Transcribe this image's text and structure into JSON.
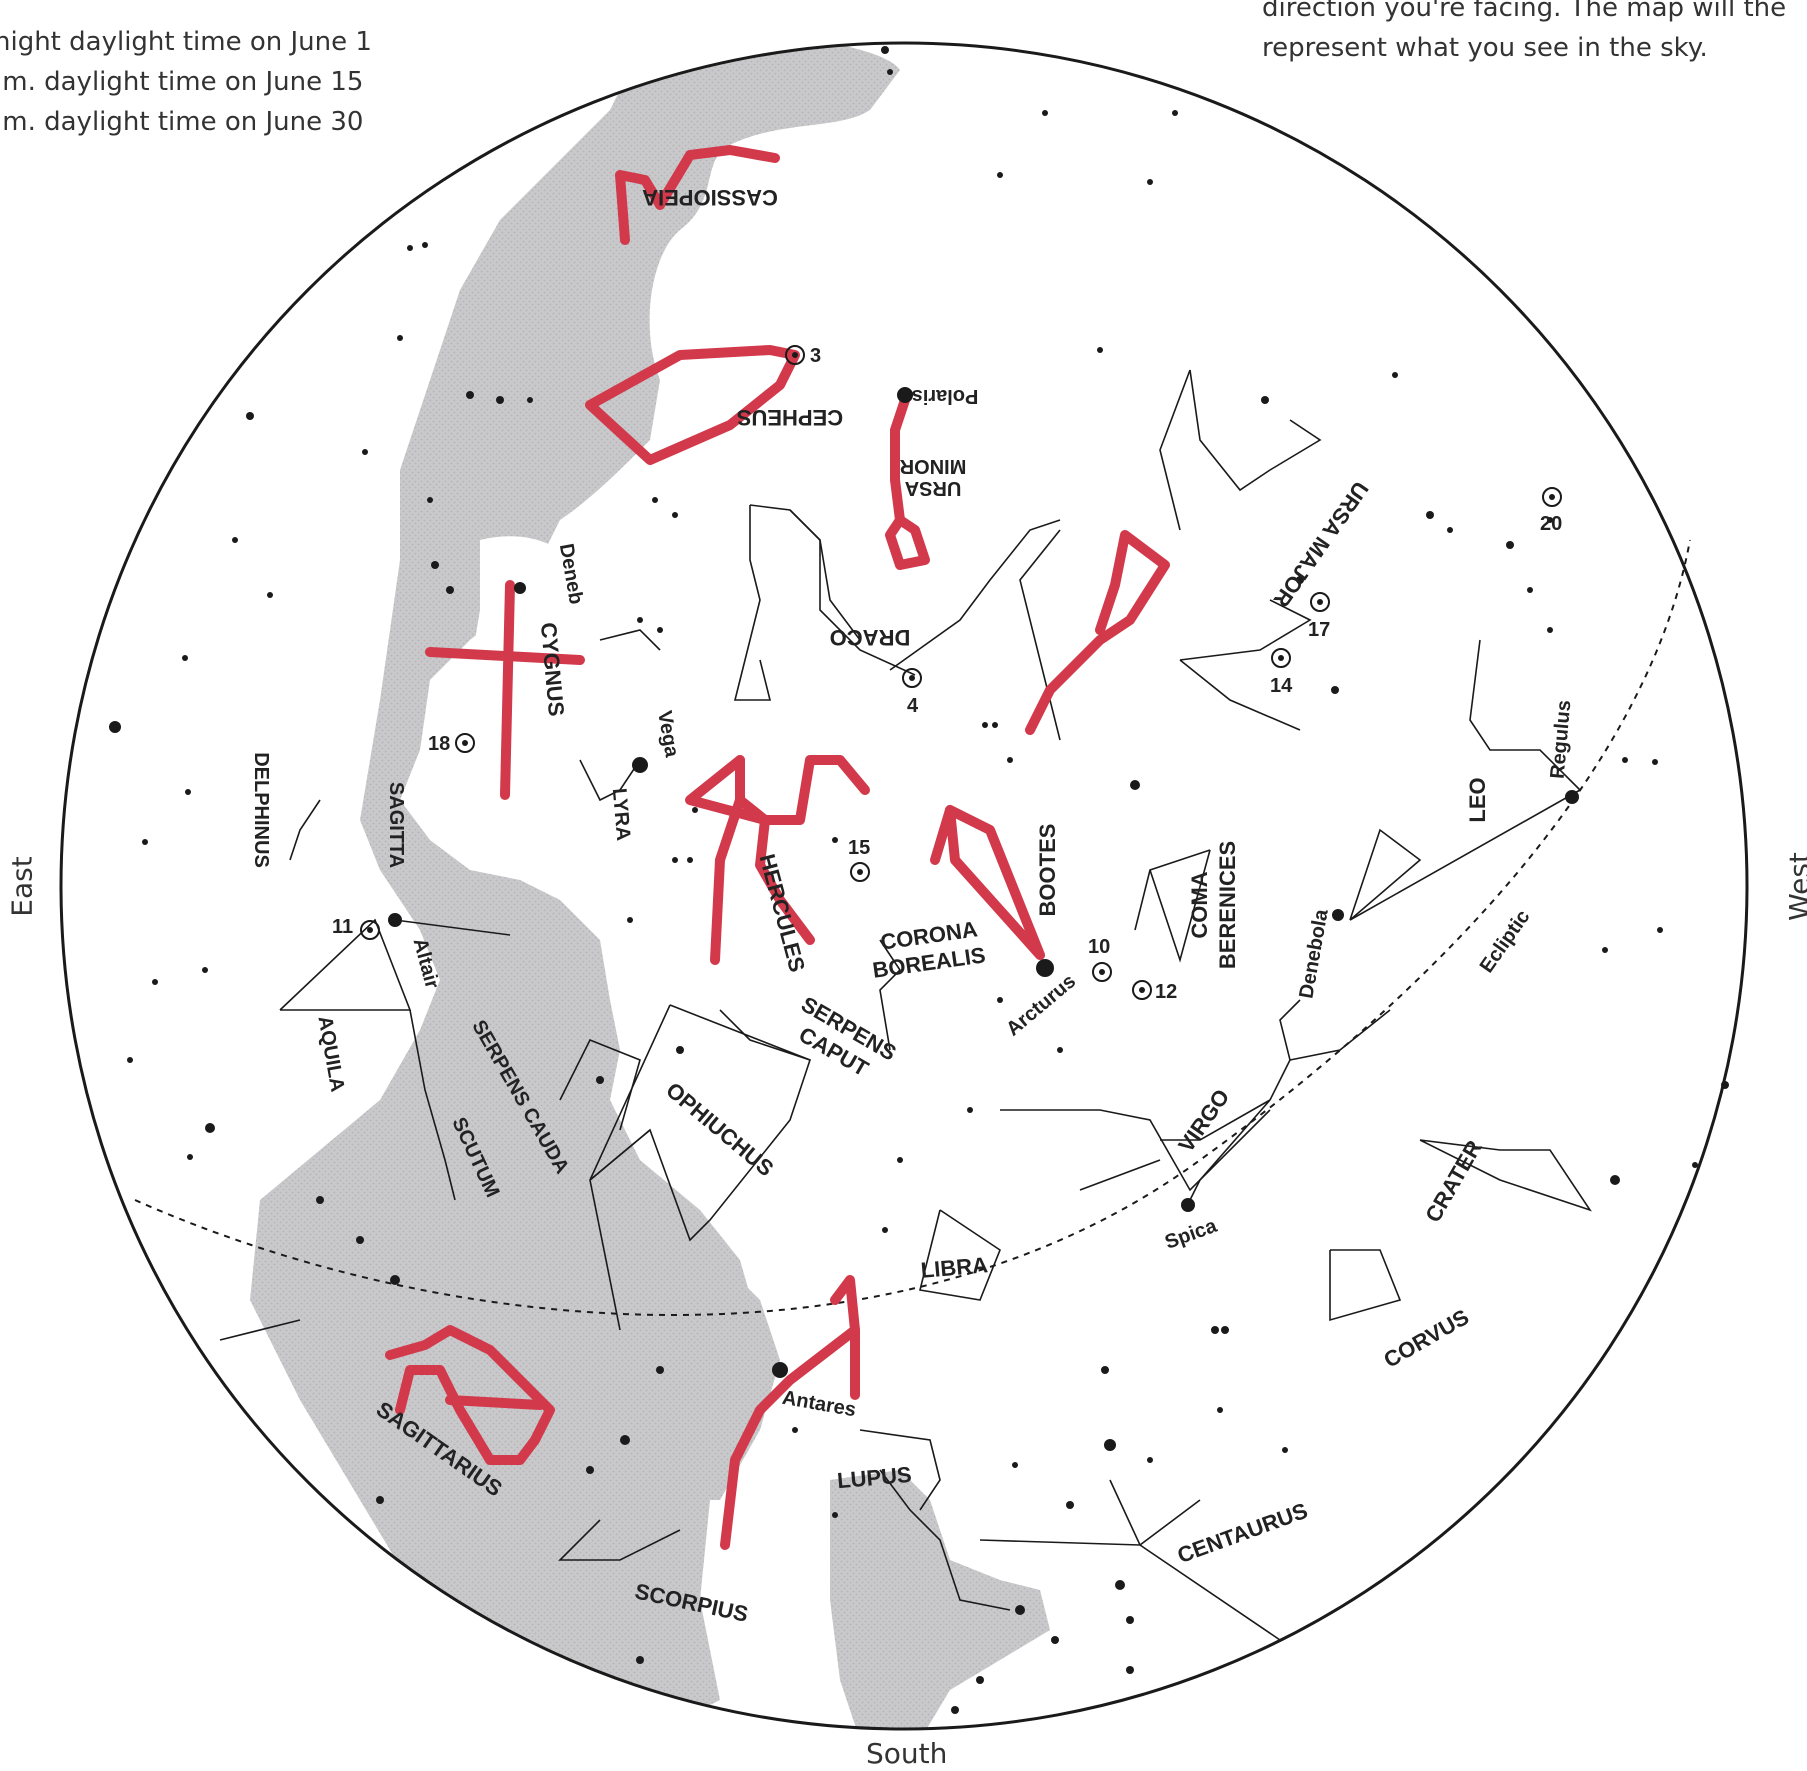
{
  "caption_left": [
    "night daylight time on June 1",
    ".m. daylight time on June 15",
    ".m. daylight time on June 30"
  ],
  "caption_right": [
    "direction you're facing. The map will the",
    "represent what you see in the sky."
  ],
  "directions": {
    "east": "East",
    "west": "West",
    "south": "South"
  },
  "colors": {
    "milky_way": "#c9c9cb",
    "highlight": "#d23a4c",
    "ink": "#1a1a1a",
    "background": "#ffffff"
  },
  "constellations": {
    "cassiopeia": "CASSIOPEIA",
    "cepheus": "CEPHEUS",
    "ursa_minor": [
      "URSA",
      "MINOR"
    ],
    "ursa_major": "URSA MAJOR",
    "draco": "DRACO",
    "cygnus": "CYGNUS",
    "lyra": "LYRA",
    "delphinus": "DELPHINUS",
    "sagitta": "SAGITTA",
    "aquila": "AQUILA",
    "hercules": "HERCULES",
    "corona_borealis": [
      "CORONA",
      "BOREALIS"
    ],
    "bootes": "BOOTES",
    "coma_berenices": [
      "COMA",
      "BERENICES"
    ],
    "leo": "LEO",
    "serpens_caput": [
      "SERPENS",
      "CAPUT"
    ],
    "serpens_cauda": "SERPENS CAUDA",
    "scutum": "SCUTUM",
    "ophiuchus": "OPHIUCHUS",
    "virgo": "VIRGO",
    "crater": "CRATER",
    "corvus": "CORVUS",
    "libra": "LIBRA",
    "sagittarius": "SAGITTARIUS",
    "scorpius": "SCORPIUS",
    "lupus": "LUPUS",
    "centaurus": "CENTAURUS"
  },
  "stars": {
    "polaris": "Polaris",
    "deneb": "Deneb",
    "vega": "Vega",
    "altair": "Altair",
    "arcturus": "Arcturus",
    "spica": "Spica",
    "antares": "Antares",
    "regulus": "Regulus",
    "denebola": "Denebola"
  },
  "ecliptic_label": "Ecliptic",
  "deep_sky_objects": [
    "3",
    "4",
    "10",
    "11",
    "12",
    "14",
    "15",
    "17",
    "18",
    "20"
  ]
}
